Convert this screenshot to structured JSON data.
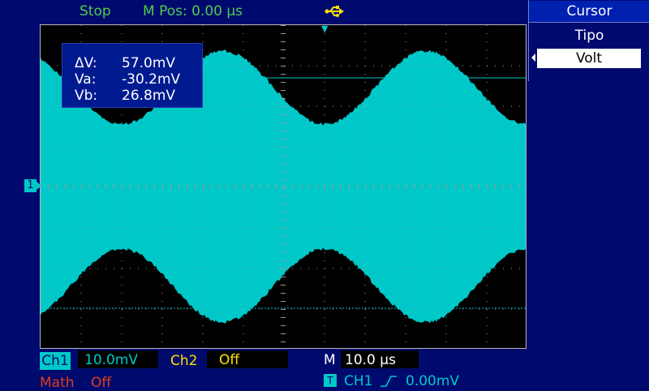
{
  "status": {
    "run_state": "Stop",
    "m_pos": "M Pos: 0.00 µs"
  },
  "icons": {
    "usb": "usb-icon"
  },
  "cursor_readout": {
    "dv_label": "ΔV:",
    "dv_value": "57.0mV",
    "va_label": "Va:",
    "va_value": "-30.2mV",
    "vb_label": "Vb:",
    "vb_value": "26.8mV"
  },
  "menu": {
    "title": "Cursor",
    "tipo_label": "Tipo",
    "tipo_value": "Volt"
  },
  "channel_marker": "1",
  "trigger_marker": "▼",
  "bottom": {
    "ch1_label": "Ch1",
    "ch1_scale": "10.0mV",
    "ch2_label": "Ch2",
    "ch2_state": "Off",
    "m_label": "M",
    "timebase": "10.0 µs",
    "math_label": "Math",
    "math_state": "Off",
    "trig_tag": "T",
    "trig_source": "CH1",
    "trig_level": "0.00mV"
  },
  "colors": {
    "background": "#000a6e",
    "trace": "#00c8c8",
    "status": "#4ecb4e",
    "ch2": "#ffe000",
    "math": "#e03c1e",
    "usb": "#ffe000"
  }
}
